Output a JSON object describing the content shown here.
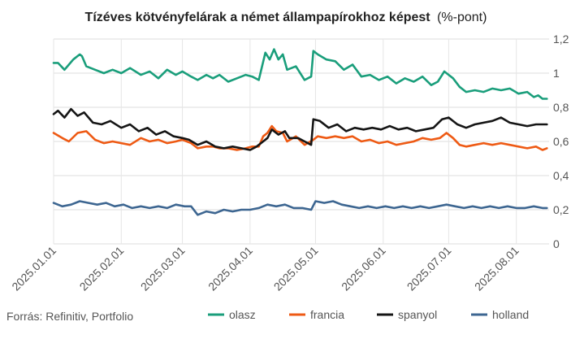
{
  "chart_data": {
    "type": "line",
    "title": "Tízéves kötvényfelárak a német állampapírokhoz képest",
    "subtitle": "(%-pont)",
    "source": "Forrás: Refinitiv, Portfolio",
    "ylim": [
      0,
      1.2
    ],
    "y_ticks": [
      "0",
      "0,2",
      "0,4",
      "0,6",
      "0,8",
      "1",
      "1,2"
    ],
    "x_ticks": [
      "2025.01.01",
      "2025.02.01",
      "2025.03.01",
      "2025.04.01",
      "2025.05.01",
      "2025.06.01",
      "2025.07.01",
      "2025.08.01"
    ],
    "grid": true,
    "legend_position": "bottom",
    "colors": {
      "olasz": "#1a9e7b",
      "francia": "#ee5a14",
      "spanyol": "#151515",
      "holland": "#3d6691"
    },
    "series": [
      {
        "name": "olasz",
        "points": [
          [
            "2025-01-01",
            1.06
          ],
          [
            "2025-01-03",
            1.06
          ],
          [
            "2025-01-06",
            1.02
          ],
          [
            "2025-01-08",
            1.05
          ],
          [
            "2025-01-10",
            1.08
          ],
          [
            "2025-01-13",
            1.11
          ],
          [
            "2025-01-14",
            1.1
          ],
          [
            "2025-01-16",
            1.04
          ],
          [
            "2025-01-20",
            1.02
          ],
          [
            "2025-01-24",
            1.0
          ],
          [
            "2025-01-28",
            1.02
          ],
          [
            "2025-02-01",
            1.0
          ],
          [
            "2025-02-05",
            1.03
          ],
          [
            "2025-02-10",
            0.99
          ],
          [
            "2025-02-14",
            1.01
          ],
          [
            "2025-02-18",
            0.97
          ],
          [
            "2025-02-22",
            1.02
          ],
          [
            "2025-02-26",
            0.99
          ],
          [
            "2025-03-01",
            1.01
          ],
          [
            "2025-03-05",
            0.98
          ],
          [
            "2025-03-08",
            0.96
          ],
          [
            "2025-03-12",
            0.99
          ],
          [
            "2025-03-15",
            0.97
          ],
          [
            "2025-03-18",
            0.99
          ],
          [
            "2025-03-22",
            0.95
          ],
          [
            "2025-03-26",
            0.97
          ],
          [
            "2025-03-30",
            0.99
          ],
          [
            "2025-04-02",
            0.98
          ],
          [
            "2025-04-05",
            0.96
          ],
          [
            "2025-04-08",
            1.12
          ],
          [
            "2025-04-10",
            1.08
          ],
          [
            "2025-04-12",
            1.14
          ],
          [
            "2025-04-14",
            1.08
          ],
          [
            "2025-04-16",
            1.11
          ],
          [
            "2025-04-18",
            1.02
          ],
          [
            "2025-04-22",
            1.04
          ],
          [
            "2025-04-26",
            0.96
          ],
          [
            "2025-04-29",
            0.98
          ],
          [
            "2025-04-30",
            1.13
          ],
          [
            "2025-05-02",
            1.11
          ],
          [
            "2025-05-06",
            1.08
          ],
          [
            "2025-05-10",
            1.07
          ],
          [
            "2025-05-14",
            1.02
          ],
          [
            "2025-05-18",
            1.05
          ],
          [
            "2025-05-22",
            0.98
          ],
          [
            "2025-05-26",
            0.99
          ],
          [
            "2025-05-30",
            0.96
          ],
          [
            "2025-06-03",
            0.98
          ],
          [
            "2025-06-07",
            0.94
          ],
          [
            "2025-06-11",
            0.97
          ],
          [
            "2025-06-15",
            0.95
          ],
          [
            "2025-06-19",
            0.98
          ],
          [
            "2025-06-23",
            0.93
          ],
          [
            "2025-06-26",
            0.95
          ],
          [
            "2025-06-29",
            1.01
          ],
          [
            "2025-07-03",
            0.97
          ],
          [
            "2025-07-06",
            0.92
          ],
          [
            "2025-07-09",
            0.89
          ],
          [
            "2025-07-13",
            0.9
          ],
          [
            "2025-07-17",
            0.89
          ],
          [
            "2025-07-21",
            0.91
          ],
          [
            "2025-07-25",
            0.9
          ],
          [
            "2025-07-29",
            0.91
          ],
          [
            "2025-08-02",
            0.88
          ],
          [
            "2025-08-06",
            0.89
          ],
          [
            "2025-08-09",
            0.86
          ],
          [
            "2025-08-11",
            0.87
          ],
          [
            "2025-08-13",
            0.85
          ],
          [
            "2025-08-15",
            0.85
          ]
        ]
      },
      {
        "name": "francia",
        "points": [
          [
            "2025-01-01",
            0.65
          ],
          [
            "2025-01-05",
            0.62
          ],
          [
            "2025-01-08",
            0.6
          ],
          [
            "2025-01-12",
            0.65
          ],
          [
            "2025-01-16",
            0.66
          ],
          [
            "2025-01-20",
            0.61
          ],
          [
            "2025-01-24",
            0.59
          ],
          [
            "2025-01-28",
            0.6
          ],
          [
            "2025-02-01",
            0.59
          ],
          [
            "2025-02-05",
            0.58
          ],
          [
            "2025-02-10",
            0.62
          ],
          [
            "2025-02-14",
            0.6
          ],
          [
            "2025-02-18",
            0.61
          ],
          [
            "2025-02-22",
            0.59
          ],
          [
            "2025-02-26",
            0.6
          ],
          [
            "2025-03-01",
            0.61
          ],
          [
            "2025-03-05",
            0.59
          ],
          [
            "2025-03-08",
            0.56
          ],
          [
            "2025-03-12",
            0.57
          ],
          [
            "2025-03-15",
            0.57
          ],
          [
            "2025-03-18",
            0.56
          ],
          [
            "2025-03-22",
            0.56
          ],
          [
            "2025-03-26",
            0.55
          ],
          [
            "2025-03-30",
            0.56
          ],
          [
            "2025-04-02",
            0.57
          ],
          [
            "2025-04-05",
            0.57
          ],
          [
            "2025-04-07",
            0.63
          ],
          [
            "2025-04-09",
            0.65
          ],
          [
            "2025-04-11",
            0.69
          ],
          [
            "2025-04-13",
            0.66
          ],
          [
            "2025-04-16",
            0.65
          ],
          [
            "2025-04-18",
            0.6
          ],
          [
            "2025-04-22",
            0.63
          ],
          [
            "2025-04-26",
            0.58
          ],
          [
            "2025-04-30",
            0.61
          ],
          [
            "2025-05-02",
            0.63
          ],
          [
            "2025-05-06",
            0.62
          ],
          [
            "2025-05-10",
            0.63
          ],
          [
            "2025-05-14",
            0.62
          ],
          [
            "2025-05-18",
            0.63
          ],
          [
            "2025-05-22",
            0.6
          ],
          [
            "2025-05-26",
            0.61
          ],
          [
            "2025-05-30",
            0.59
          ],
          [
            "2025-06-03",
            0.6
          ],
          [
            "2025-06-07",
            0.58
          ],
          [
            "2025-06-11",
            0.59
          ],
          [
            "2025-06-15",
            0.6
          ],
          [
            "2025-06-19",
            0.62
          ],
          [
            "2025-06-23",
            0.61
          ],
          [
            "2025-06-27",
            0.62
          ],
          [
            "2025-06-30",
            0.65
          ],
          [
            "2025-07-03",
            0.62
          ],
          [
            "2025-07-06",
            0.58
          ],
          [
            "2025-07-09",
            0.57
          ],
          [
            "2025-07-13",
            0.58
          ],
          [
            "2025-07-17",
            0.59
          ],
          [
            "2025-07-21",
            0.58
          ],
          [
            "2025-07-25",
            0.59
          ],
          [
            "2025-07-29",
            0.58
          ],
          [
            "2025-08-02",
            0.57
          ],
          [
            "2025-08-06",
            0.56
          ],
          [
            "2025-08-10",
            0.57
          ],
          [
            "2025-08-13",
            0.55
          ],
          [
            "2025-08-15",
            0.56
          ]
        ]
      },
      {
        "name": "spanyol",
        "points": [
          [
            "2025-01-01",
            0.76
          ],
          [
            "2025-01-03",
            0.78
          ],
          [
            "2025-01-06",
            0.74
          ],
          [
            "2025-01-09",
            0.79
          ],
          [
            "2025-01-12",
            0.75
          ],
          [
            "2025-01-15",
            0.77
          ],
          [
            "2025-01-19",
            0.71
          ],
          [
            "2025-01-23",
            0.7
          ],
          [
            "2025-01-27",
            0.72
          ],
          [
            "2025-02-01",
            0.68
          ],
          [
            "2025-02-05",
            0.7
          ],
          [
            "2025-02-09",
            0.66
          ],
          [
            "2025-02-13",
            0.68
          ],
          [
            "2025-02-17",
            0.64
          ],
          [
            "2025-02-21",
            0.66
          ],
          [
            "2025-02-25",
            0.63
          ],
          [
            "2025-03-01",
            0.62
          ],
          [
            "2025-03-04",
            0.61
          ],
          [
            "2025-03-08",
            0.58
          ],
          [
            "2025-03-12",
            0.6
          ],
          [
            "2025-03-16",
            0.57
          ],
          [
            "2025-03-20",
            0.56
          ],
          [
            "2025-03-24",
            0.57
          ],
          [
            "2025-03-28",
            0.56
          ],
          [
            "2025-04-01",
            0.55
          ],
          [
            "2025-04-04",
            0.57
          ],
          [
            "2025-04-07",
            0.6
          ],
          [
            "2025-04-09",
            0.62
          ],
          [
            "2025-04-11",
            0.67
          ],
          [
            "2025-04-14",
            0.64
          ],
          [
            "2025-04-17",
            0.66
          ],
          [
            "2025-04-19",
            0.62
          ],
          [
            "2025-04-23",
            0.62
          ],
          [
            "2025-04-26",
            0.6
          ],
          [
            "2025-04-29",
            0.58
          ],
          [
            "2025-04-30",
            0.73
          ],
          [
            "2025-05-03",
            0.72
          ],
          [
            "2025-05-07",
            0.68
          ],
          [
            "2025-05-11",
            0.7
          ],
          [
            "2025-05-15",
            0.66
          ],
          [
            "2025-05-19",
            0.68
          ],
          [
            "2025-05-23",
            0.67
          ],
          [
            "2025-05-27",
            0.68
          ],
          [
            "2025-05-31",
            0.67
          ],
          [
            "2025-06-04",
            0.69
          ],
          [
            "2025-06-08",
            0.67
          ],
          [
            "2025-06-12",
            0.68
          ],
          [
            "2025-06-16",
            0.66
          ],
          [
            "2025-06-20",
            0.67
          ],
          [
            "2025-06-24",
            0.68
          ],
          [
            "2025-06-28",
            0.73
          ],
          [
            "2025-07-01",
            0.74
          ],
          [
            "2025-07-05",
            0.7
          ],
          [
            "2025-07-09",
            0.68
          ],
          [
            "2025-07-13",
            0.7
          ],
          [
            "2025-07-17",
            0.71
          ],
          [
            "2025-07-21",
            0.72
          ],
          [
            "2025-07-25",
            0.74
          ],
          [
            "2025-07-29",
            0.71
          ],
          [
            "2025-08-02",
            0.7
          ],
          [
            "2025-08-06",
            0.69
          ],
          [
            "2025-08-10",
            0.7
          ],
          [
            "2025-08-13",
            0.7
          ],
          [
            "2025-08-15",
            0.7
          ]
        ]
      },
      {
        "name": "holland",
        "points": [
          [
            "2025-01-01",
            0.24
          ],
          [
            "2025-01-05",
            0.22
          ],
          [
            "2025-01-09",
            0.23
          ],
          [
            "2025-01-13",
            0.25
          ],
          [
            "2025-01-17",
            0.24
          ],
          [
            "2025-01-21",
            0.23
          ],
          [
            "2025-01-25",
            0.24
          ],
          [
            "2025-01-29",
            0.22
          ],
          [
            "2025-02-02",
            0.23
          ],
          [
            "2025-02-06",
            0.21
          ],
          [
            "2025-02-10",
            0.22
          ],
          [
            "2025-02-14",
            0.21
          ],
          [
            "2025-02-18",
            0.22
          ],
          [
            "2025-02-22",
            0.21
          ],
          [
            "2025-02-26",
            0.23
          ],
          [
            "2025-03-02",
            0.22
          ],
          [
            "2025-03-05",
            0.22
          ],
          [
            "2025-03-08",
            0.17
          ],
          [
            "2025-03-12",
            0.19
          ],
          [
            "2025-03-16",
            0.18
          ],
          [
            "2025-03-20",
            0.2
          ],
          [
            "2025-03-24",
            0.19
          ],
          [
            "2025-03-28",
            0.2
          ],
          [
            "2025-04-01",
            0.2
          ],
          [
            "2025-04-05",
            0.21
          ],
          [
            "2025-04-09",
            0.23
          ],
          [
            "2025-04-13",
            0.22
          ],
          [
            "2025-04-17",
            0.23
          ],
          [
            "2025-04-21",
            0.21
          ],
          [
            "2025-04-25",
            0.21
          ],
          [
            "2025-04-29",
            0.2
          ],
          [
            "2025-05-01",
            0.25
          ],
          [
            "2025-05-05",
            0.24
          ],
          [
            "2025-05-09",
            0.25
          ],
          [
            "2025-05-13",
            0.23
          ],
          [
            "2025-05-17",
            0.22
          ],
          [
            "2025-05-21",
            0.21
          ],
          [
            "2025-05-25",
            0.22
          ],
          [
            "2025-05-29",
            0.21
          ],
          [
            "2025-06-02",
            0.22
          ],
          [
            "2025-06-06",
            0.21
          ],
          [
            "2025-06-10",
            0.22
          ],
          [
            "2025-06-14",
            0.21
          ],
          [
            "2025-06-18",
            0.22
          ],
          [
            "2025-06-22",
            0.21
          ],
          [
            "2025-06-26",
            0.22
          ],
          [
            "2025-06-30",
            0.23
          ],
          [
            "2025-07-04",
            0.22
          ],
          [
            "2025-07-08",
            0.21
          ],
          [
            "2025-07-12",
            0.22
          ],
          [
            "2025-07-16",
            0.21
          ],
          [
            "2025-07-20",
            0.22
          ],
          [
            "2025-07-24",
            0.21
          ],
          [
            "2025-07-28",
            0.22
          ],
          [
            "2025-08-01",
            0.21
          ],
          [
            "2025-08-05",
            0.21
          ],
          [
            "2025-08-09",
            0.22
          ],
          [
            "2025-08-13",
            0.21
          ],
          [
            "2025-08-15",
            0.21
          ]
        ]
      }
    ]
  }
}
